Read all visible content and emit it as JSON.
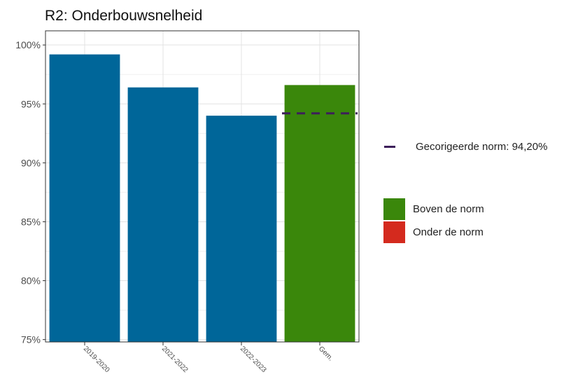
{
  "chart_data": {
    "type": "bar",
    "title": "R2: Onderbouwsnelheid",
    "xlabel": "",
    "ylabel": "",
    "categories": [
      "2019-2020",
      "2021-2022",
      "2022-2023",
      "Gem."
    ],
    "values": [
      99.2,
      96.4,
      94.0,
      96.6
    ],
    "bar_colors": [
      "#006699",
      "#006699",
      "#006699",
      "#3A870B"
    ],
    "ylim": [
      74.8,
      101.2
    ],
    "y_ticks": [
      75,
      80,
      85,
      90,
      95,
      100
    ],
    "y_tick_labels": [
      "75%",
      "80%",
      "85%",
      "90%",
      "95%",
      "100%"
    ],
    "grid": true,
    "norm_line": {
      "value": 94.2,
      "category": "Gem.",
      "color": "#3D1F5A",
      "style": "dashed"
    },
    "legend": {
      "placement": "right",
      "norm_label": "Gecorigeerde norm: 94,20%",
      "items": [
        {
          "label": "Boven de norm",
          "color": "#3A870B"
        },
        {
          "label": "Onder de norm",
          "color": "#D42A1E"
        }
      ]
    }
  }
}
